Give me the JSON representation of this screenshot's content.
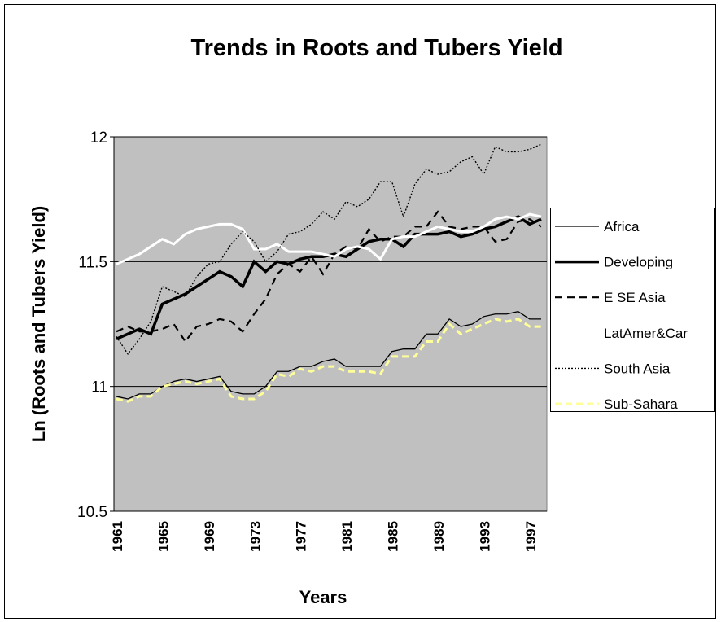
{
  "chart_data": {
    "type": "line",
    "title": "Trends in Roots and Tubers Yield",
    "x_label": "Years",
    "y_label": "Ln (Roots and Tubers Yield)",
    "categories": [
      "1961",
      null,
      null,
      null,
      "1965",
      null,
      null,
      null,
      "1969",
      null,
      null,
      null,
      "1973",
      null,
      null,
      null,
      "1977",
      null,
      null,
      null,
      "1981",
      null,
      null,
      null,
      "1985",
      null,
      null,
      null,
      "1989",
      null,
      null,
      null,
      "1993",
      null,
      null,
      null,
      "1997",
      null
    ],
    "ylim": [
      10.5,
      12
    ],
    "yticks": [
      10.5,
      11,
      11.5,
      12
    ],
    "grid": true,
    "legend": "right",
    "series": [
      {
        "name": "Africa",
        "color": "#000000",
        "values": [
          10.96,
          10.95,
          10.97,
          10.97,
          11.0,
          11.02,
          11.03,
          11.02,
          11.03,
          11.04,
          10.98,
          10.97,
          10.97,
          11.0,
          11.06,
          11.06,
          11.08,
          11.08,
          11.1,
          11.11,
          11.08,
          11.08,
          11.08,
          11.08,
          11.14,
          11.15,
          11.15,
          11.21,
          11.21,
          11.27,
          11.24,
          11.25,
          11.28,
          11.29,
          11.29,
          11.3,
          11.27,
          11.27
        ]
      },
      {
        "name": "Developing",
        "color": "#000000",
        "values": [
          11.19,
          11.21,
          11.23,
          11.21,
          11.33,
          11.35,
          11.37,
          11.4,
          11.43,
          11.46,
          11.44,
          11.4,
          11.5,
          11.46,
          11.5,
          11.49,
          11.51,
          11.52,
          11.52,
          11.53,
          11.52,
          11.55,
          11.58,
          11.59,
          11.59,
          11.56,
          11.61,
          11.61,
          11.61,
          11.62,
          11.6,
          11.61,
          11.63,
          11.64,
          11.66,
          11.68,
          11.65,
          11.67
        ]
      },
      {
        "name": "E SE Asia",
        "color": "#000000",
        "values": [
          11.22,
          11.24,
          11.22,
          11.22,
          11.23,
          11.25,
          11.18,
          11.24,
          11.25,
          11.27,
          11.26,
          11.22,
          11.29,
          11.35,
          11.45,
          11.49,
          11.46,
          11.52,
          11.45,
          11.53,
          11.56,
          11.55,
          11.63,
          11.58,
          11.6,
          11.6,
          11.64,
          11.64,
          11.7,
          11.64,
          11.63,
          11.64,
          11.64,
          11.58,
          11.59,
          11.66,
          11.67,
          11.64
        ]
      },
      {
        "name": "LatAmer&Car",
        "color": "#ffffff",
        "values": [
          11.49,
          11.51,
          11.53,
          11.56,
          11.59,
          11.57,
          11.61,
          11.63,
          11.64,
          11.65,
          11.65,
          11.63,
          11.55,
          11.55,
          11.57,
          11.54,
          11.54,
          11.54,
          11.53,
          11.52,
          11.55,
          11.56,
          11.55,
          11.51,
          11.59,
          11.6,
          11.6,
          11.62,
          11.64,
          11.63,
          11.62,
          11.62,
          11.64,
          11.67,
          11.68,
          11.67,
          11.69,
          11.68
        ]
      },
      {
        "name": "South Asia",
        "color": "#000000",
        "values": [
          11.2,
          11.13,
          11.19,
          11.26,
          11.4,
          11.38,
          11.36,
          11.44,
          11.49,
          11.5,
          11.57,
          11.62,
          11.58,
          11.5,
          11.54,
          11.61,
          11.62,
          11.65,
          11.7,
          11.67,
          11.74,
          11.72,
          11.75,
          11.82,
          11.82,
          11.68,
          11.81,
          11.87,
          11.85,
          11.86,
          11.9,
          11.92,
          11.85,
          11.96,
          11.94,
          11.94,
          11.95,
          11.97
        ]
      },
      {
        "name": "Sub-Sahara",
        "color": "#ffff99",
        "values": [
          10.95,
          10.94,
          10.96,
          10.96,
          11.0,
          11.01,
          11.02,
          11.01,
          11.02,
          11.03,
          10.96,
          10.95,
          10.95,
          10.98,
          11.05,
          11.04,
          11.07,
          11.06,
          11.08,
          11.08,
          11.06,
          11.06,
          11.06,
          11.05,
          11.12,
          11.12,
          11.12,
          11.18,
          11.18,
          11.25,
          11.21,
          11.23,
          11.25,
          11.27,
          11.26,
          11.27,
          11.24,
          11.24
        ]
      }
    ]
  }
}
